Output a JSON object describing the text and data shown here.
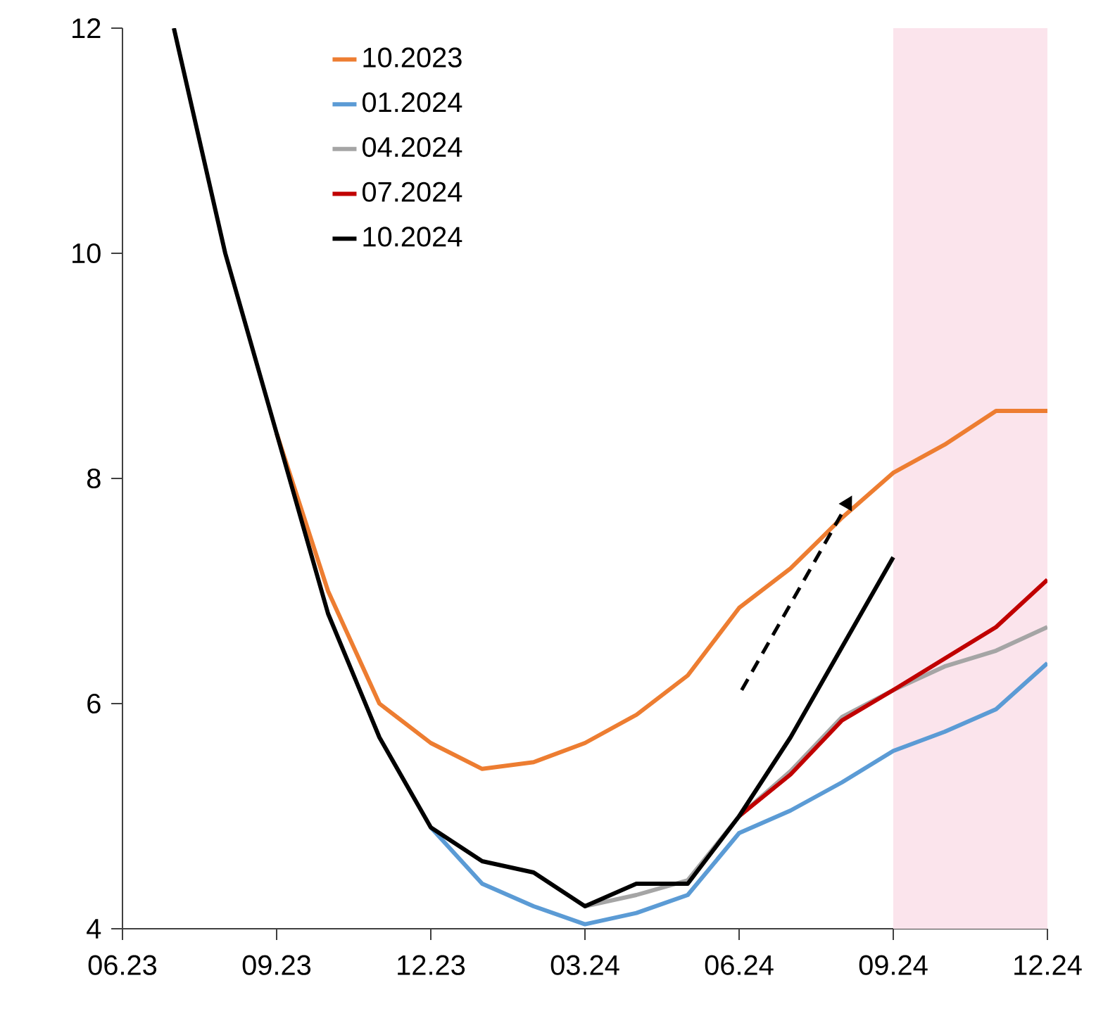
{
  "chart_data": {
    "type": "line",
    "categories": [
      "06.23",
      null,
      null,
      "09.23",
      null,
      null,
      "12.23",
      null,
      null,
      "03.24",
      null,
      null,
      "06.24",
      null,
      null,
      "09.24",
      null,
      null,
      "12.24"
    ],
    "series": [
      {
        "name": "10.2023",
        "color": "#ed7d31",
        "values": [
          null,
          null,
          null,
          8.4,
          7.0,
          6.0,
          5.65,
          5.42,
          5.48,
          5.65,
          5.9,
          6.25,
          6.85,
          7.2,
          7.65,
          8.05,
          8.3,
          8.6,
          8.6
        ]
      },
      {
        "name": "01.2024",
        "color": "#5b9bd5",
        "values": [
          null,
          null,
          null,
          null,
          null,
          null,
          4.9,
          4.4,
          4.2,
          4.04,
          4.14,
          4.3,
          4.85,
          5.05,
          5.3,
          5.58,
          5.75,
          5.95,
          6.36
        ]
      },
      {
        "name": "04.2024",
        "color": "#a5a5a5",
        "values": [
          null,
          null,
          null,
          null,
          null,
          null,
          null,
          null,
          null,
          4.2,
          4.3,
          4.43,
          5.0,
          5.4,
          5.88,
          6.12,
          6.33,
          6.47,
          6.68
        ]
      },
      {
        "name": "07.2024",
        "color": "#c00000",
        "values": [
          null,
          null,
          null,
          null,
          null,
          null,
          null,
          null,
          null,
          null,
          null,
          null,
          5.0,
          5.37,
          5.85,
          6.12,
          6.4,
          6.68,
          7.1
        ]
      },
      {
        "name": "10.2024",
        "color": "#000000",
        "values": [
          null,
          12.0,
          10.0,
          8.4,
          6.8,
          5.7,
          4.9,
          4.6,
          4.5,
          4.2,
          4.4,
          4.4,
          5.0,
          5.7,
          6.5,
          7.3,
          null,
          null,
          null
        ]
      }
    ],
    "ylim": [
      4,
      12
    ],
    "yticks": [
      4,
      6,
      8,
      10,
      12
    ],
    "grid": false,
    "legend": "top",
    "line_style": "solid",
    "marker": "none",
    "bands": [
      {
        "axis": "x",
        "from": "09.24",
        "to": "12.24",
        "color": "#fbe4ec"
      }
    ]
  }
}
